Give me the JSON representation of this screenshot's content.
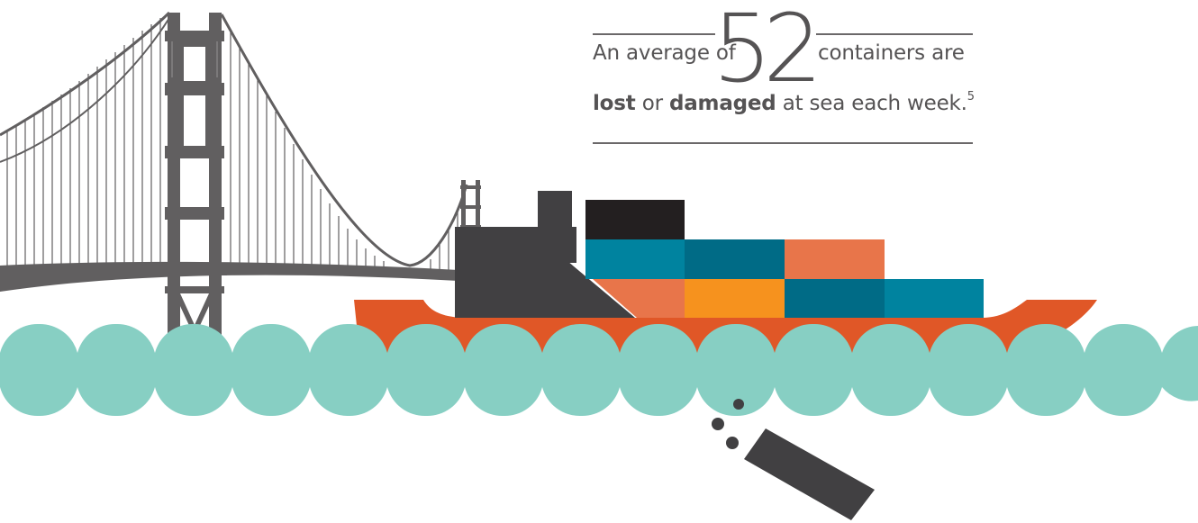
{
  "callout": {
    "prefix": "An average of",
    "number": "52",
    "suffix": "containers are",
    "word_lost": "lost",
    "word_or": "or",
    "word_damaged": "damaged",
    "tail": "at sea each week.",
    "footnote": "5"
  },
  "colors": {
    "bridge": "#615f60",
    "hull": "#e05727",
    "superstructure": "#414042",
    "water": "#87cfc3",
    "container_black": "#231f20",
    "container_teal": "#00839f",
    "container_teal_dark": "#006b86",
    "container_coral": "#e8754a",
    "container_orange": "#f6921e",
    "text": "#555354"
  }
}
